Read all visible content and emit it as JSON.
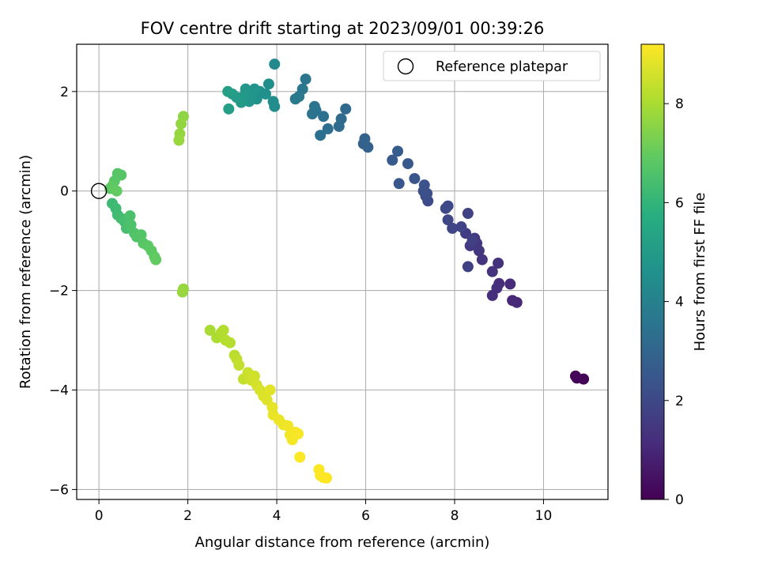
{
  "chart_data": {
    "type": "scatter",
    "title": "FOV centre drift starting at 2023/09/01 00:39:26",
    "xlabel": "Angular distance from reference (arcmin)",
    "ylabel": "Rotation from reference (arcmin)",
    "xlim": [
      -0.5,
      11.45
    ],
    "ylim": [
      -6.2,
      2.95
    ],
    "xticks": [
      0,
      2,
      4,
      6,
      8,
      10
    ],
    "yticks": [
      -6,
      -4,
      -2,
      0,
      2
    ],
    "grid": true,
    "legend": {
      "location": "upper right",
      "entries": [
        "Reference platepar"
      ]
    },
    "reference_point": {
      "name": "Reference platepar",
      "x": 0,
      "y": 0
    },
    "colorbar": {
      "label": "Hours from first FF file",
      "min": 0,
      "max": 9.2,
      "ticks": [
        0,
        2,
        4,
        6,
        8
      ],
      "colormap": "viridis"
    },
    "points": [
      {
        "x": 10.9,
        "y": -3.78,
        "h": 0.05
      },
      {
        "x": 10.72,
        "y": -3.72,
        "h": 0.1
      },
      {
        "x": 10.75,
        "y": -3.76,
        "h": 0.12
      },
      {
        "x": 9.4,
        "y": -2.24,
        "h": 1.0
      },
      {
        "x": 9.3,
        "y": -2.2,
        "h": 1.05
      },
      {
        "x": 9.25,
        "y": -1.87,
        "h": 1.1
      },
      {
        "x": 9.0,
        "y": -1.86,
        "h": 1.15
      },
      {
        "x": 8.95,
        "y": -1.95,
        "h": 1.2
      },
      {
        "x": 8.85,
        "y": -2.1,
        "h": 1.25
      },
      {
        "x": 8.98,
        "y": -1.45,
        "h": 1.3
      },
      {
        "x": 8.85,
        "y": -1.62,
        "h": 1.35
      },
      {
        "x": 8.62,
        "y": -1.38,
        "h": 1.4
      },
      {
        "x": 8.55,
        "y": -1.2,
        "h": 1.45
      },
      {
        "x": 8.5,
        "y": -1.05,
        "h": 1.5
      },
      {
        "x": 8.45,
        "y": -0.95,
        "h": 1.55
      },
      {
        "x": 8.35,
        "y": -1.1,
        "h": 1.6
      },
      {
        "x": 8.25,
        "y": -0.85,
        "h": 1.65
      },
      {
        "x": 8.3,
        "y": -1.52,
        "h": 1.7
      },
      {
        "x": 8.4,
        "y": -1.0,
        "h": 1.75
      },
      {
        "x": 8.3,
        "y": -0.45,
        "h": 1.8
      },
      {
        "x": 8.15,
        "y": -0.72,
        "h": 1.85
      },
      {
        "x": 7.95,
        "y": -0.75,
        "h": 1.9
      },
      {
        "x": 7.85,
        "y": -0.58,
        "h": 1.95
      },
      {
        "x": 7.85,
        "y": -0.3,
        "h": 2.0
      },
      {
        "x": 7.8,
        "y": -0.35,
        "h": 2.05
      },
      {
        "x": 7.4,
        "y": -0.2,
        "h": 2.1
      },
      {
        "x": 7.35,
        "y": -0.1,
        "h": 2.15
      },
      {
        "x": 7.3,
        "y": 0.0,
        "h": 2.2
      },
      {
        "x": 7.38,
        "y": -0.05,
        "h": 2.25
      },
      {
        "x": 7.32,
        "y": 0.12,
        "h": 2.3
      },
      {
        "x": 7.1,
        "y": 0.25,
        "h": 2.4
      },
      {
        "x": 6.75,
        "y": 0.15,
        "h": 2.5
      },
      {
        "x": 6.95,
        "y": 0.55,
        "h": 2.55
      },
      {
        "x": 6.6,
        "y": 0.62,
        "h": 2.6
      },
      {
        "x": 6.72,
        "y": 0.8,
        "h": 2.65
      },
      {
        "x": 6.05,
        "y": 0.88,
        "h": 2.8
      },
      {
        "x": 5.95,
        "y": 0.95,
        "h": 2.85
      },
      {
        "x": 5.98,
        "y": 1.05,
        "h": 2.9
      },
      {
        "x": 5.55,
        "y": 1.65,
        "h": 3.1
      },
      {
        "x": 5.45,
        "y": 1.45,
        "h": 3.15
      },
      {
        "x": 5.4,
        "y": 1.3,
        "h": 3.2
      },
      {
        "x": 5.15,
        "y": 1.25,
        "h": 3.3
      },
      {
        "x": 4.98,
        "y": 1.12,
        "h": 3.35
      },
      {
        "x": 5.05,
        "y": 1.5,
        "h": 3.4
      },
      {
        "x": 4.88,
        "y": 1.62,
        "h": 3.45
      },
      {
        "x": 4.8,
        "y": 1.55,
        "h": 3.5
      },
      {
        "x": 4.85,
        "y": 1.7,
        "h": 3.55
      },
      {
        "x": 4.65,
        "y": 2.25,
        "h": 3.6
      },
      {
        "x": 4.58,
        "y": 2.05,
        "h": 3.65
      },
      {
        "x": 4.5,
        "y": 1.9,
        "h": 3.7
      },
      {
        "x": 4.42,
        "y": 1.85,
        "h": 3.75
      },
      {
        "x": 3.95,
        "y": 2.55,
        "h": 4.3
      },
      {
        "x": 3.95,
        "y": 1.7,
        "h": 4.4
      },
      {
        "x": 3.92,
        "y": 1.8,
        "h": 4.45
      },
      {
        "x": 3.82,
        "y": 2.15,
        "h": 4.5
      },
      {
        "x": 3.75,
        "y": 1.95,
        "h": 4.55
      },
      {
        "x": 3.62,
        "y": 2.0,
        "h": 4.6
      },
      {
        "x": 3.55,
        "y": 1.85,
        "h": 4.65
      },
      {
        "x": 3.5,
        "y": 2.05,
        "h": 4.7
      },
      {
        "x": 3.42,
        "y": 1.95,
        "h": 4.75
      },
      {
        "x": 3.38,
        "y": 1.8,
        "h": 4.8
      },
      {
        "x": 3.3,
        "y": 2.05,
        "h": 4.85
      },
      {
        "x": 3.25,
        "y": 1.9,
        "h": 4.9
      },
      {
        "x": 3.2,
        "y": 1.78,
        "h": 4.95
      },
      {
        "x": 3.1,
        "y": 1.88,
        "h": 5.0
      },
      {
        "x": 3.0,
        "y": 1.95,
        "h": 5.05
      },
      {
        "x": 2.92,
        "y": 1.65,
        "h": 5.1
      },
      {
        "x": 2.9,
        "y": 2.0,
        "h": 5.15
      },
      {
        "x": 1.9,
        "y": 1.5,
        "h": 7.6
      },
      {
        "x": 1.85,
        "y": 1.35,
        "h": 7.65
      },
      {
        "x": 1.82,
        "y": 1.15,
        "h": 7.7
      },
      {
        "x": 1.8,
        "y": 1.02,
        "h": 7.75
      },
      {
        "x": 0.5,
        "y": 0.32,
        "h": 6.7
      },
      {
        "x": 0.42,
        "y": 0.35,
        "h": 6.75
      },
      {
        "x": 0.35,
        "y": 0.2,
        "h": 6.8
      },
      {
        "x": 0.3,
        "y": 0.1,
        "h": 6.85
      },
      {
        "x": 0.25,
        "y": 0.05,
        "h": 6.9
      },
      {
        "x": 0.4,
        "y": 0.0,
        "h": 6.95
      },
      {
        "x": 0.3,
        "y": -0.25,
        "h": 6.2
      },
      {
        "x": 0.38,
        "y": -0.35,
        "h": 6.25
      },
      {
        "x": 0.42,
        "y": -0.48,
        "h": 6.3
      },
      {
        "x": 0.5,
        "y": -0.55,
        "h": 6.35
      },
      {
        "x": 0.58,
        "y": -0.62,
        "h": 6.4
      },
      {
        "x": 0.62,
        "y": -0.75,
        "h": 6.45
      },
      {
        "x": 0.7,
        "y": -0.5,
        "h": 6.5
      },
      {
        "x": 0.72,
        "y": -0.68,
        "h": 6.55
      },
      {
        "x": 0.8,
        "y": -0.85,
        "h": 6.6
      },
      {
        "x": 0.85,
        "y": -0.92,
        "h": 6.65
      },
      {
        "x": 0.95,
        "y": -0.88,
        "h": 6.7
      },
      {
        "x": 1.0,
        "y": -1.05,
        "h": 6.75
      },
      {
        "x": 1.1,
        "y": -1.1,
        "h": 6.8
      },
      {
        "x": 1.18,
        "y": -1.2,
        "h": 6.85
      },
      {
        "x": 1.25,
        "y": -1.32,
        "h": 6.9
      },
      {
        "x": 1.28,
        "y": -1.38,
        "h": 6.95
      },
      {
        "x": 1.9,
        "y": -1.97,
        "h": 7.7
      },
      {
        "x": 1.88,
        "y": -2.03,
        "h": 7.75
      },
      {
        "x": 2.5,
        "y": -2.8,
        "h": 8.0
      },
      {
        "x": 2.65,
        "y": -2.95,
        "h": 8.05
      },
      {
        "x": 2.75,
        "y": -2.85,
        "h": 8.1
      },
      {
        "x": 2.8,
        "y": -2.8,
        "h": 8.12
      },
      {
        "x": 2.85,
        "y": -3.0,
        "h": 8.15
      },
      {
        "x": 2.95,
        "y": -3.05,
        "h": 8.2
      },
      {
        "x": 3.05,
        "y": -3.3,
        "h": 8.25
      },
      {
        "x": 3.1,
        "y": -3.38,
        "h": 8.3
      },
      {
        "x": 3.15,
        "y": -3.5,
        "h": 8.35
      },
      {
        "x": 3.25,
        "y": -3.78,
        "h": 8.4
      },
      {
        "x": 3.35,
        "y": -3.65,
        "h": 8.45
      },
      {
        "x": 3.42,
        "y": -3.8,
        "h": 8.5
      },
      {
        "x": 3.5,
        "y": -3.72,
        "h": 8.55
      },
      {
        "x": 3.55,
        "y": -3.9,
        "h": 8.6
      },
      {
        "x": 3.62,
        "y": -4.0,
        "h": 8.65
      },
      {
        "x": 3.7,
        "y": -4.12,
        "h": 8.7
      },
      {
        "x": 3.78,
        "y": -4.2,
        "h": 8.75
      },
      {
        "x": 3.85,
        "y": -4.0,
        "h": 8.8
      },
      {
        "x": 3.9,
        "y": -4.35,
        "h": 8.85
      },
      {
        "x": 3.92,
        "y": -4.5,
        "h": 8.9
      },
      {
        "x": 4.05,
        "y": -4.6,
        "h": 8.95
      },
      {
        "x": 4.15,
        "y": -4.7,
        "h": 9.0
      },
      {
        "x": 4.25,
        "y": -4.72,
        "h": 9.02
      },
      {
        "x": 4.3,
        "y": -4.9,
        "h": 9.05
      },
      {
        "x": 4.35,
        "y": -5.0,
        "h": 9.08
      },
      {
        "x": 4.42,
        "y": -4.85,
        "h": 9.1
      },
      {
        "x": 4.48,
        "y": -4.88,
        "h": 9.12
      },
      {
        "x": 4.52,
        "y": -5.35,
        "h": 9.15
      },
      {
        "x": 4.95,
        "y": -5.6,
        "h": 9.18
      },
      {
        "x": 4.98,
        "y": -5.72,
        "h": 9.19
      },
      {
        "x": 5.05,
        "y": -5.76,
        "h": 9.2
      },
      {
        "x": 5.12,
        "y": -5.77,
        "h": 9.2
      }
    ]
  }
}
